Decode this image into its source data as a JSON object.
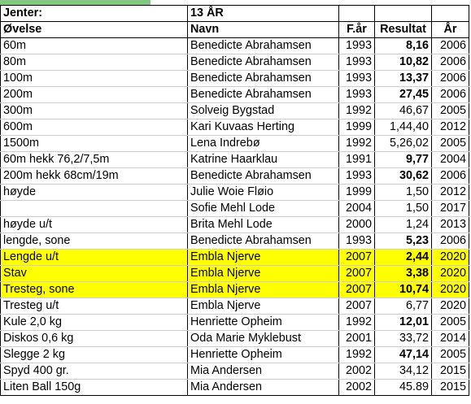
{
  "header": {
    "group_label": "Jenter:",
    "class_label": "13 ÅR"
  },
  "columns": [
    "Øvelse",
    "Navn",
    "F.år",
    "Resultat",
    "År"
  ],
  "highlight_color": "#ffff00",
  "rows": [
    {
      "event": "60m",
      "name": "Benedicte Abrahamsen",
      "born": "1993",
      "result": "8,16",
      "year": "2006",
      "bold": true,
      "highlight": false
    },
    {
      "event": "80m",
      "name": "Benedicte Abrahamsen",
      "born": "1993",
      "result": "10,82",
      "year": "2006",
      "bold": true,
      "highlight": false
    },
    {
      "event": "100m",
      "name": "Benedicte Abrahamsen",
      "born": "1993",
      "result": "13,37",
      "year": "2006",
      "bold": true,
      "highlight": false
    },
    {
      "event": "200m",
      "name": "Benedicte Abrahamsen",
      "born": "1993",
      "result": "27,45",
      "year": "2006",
      "bold": true,
      "highlight": false
    },
    {
      "event": "300m",
      "name": "Solveig Bygstad",
      "born": "1992",
      "result": "46,67",
      "year": "2005",
      "bold": false,
      "highlight": false
    },
    {
      "event": "600m",
      "name": "Kari Kuvaas Herting",
      "born": "1999",
      "result": "1,44,40",
      "year": "2012",
      "bold": false,
      "highlight": false
    },
    {
      "event": "1500m",
      "name": "Lena Indrebø",
      "born": "1992",
      "result": "5,26,02",
      "year": "2005",
      "bold": false,
      "highlight": false
    },
    {
      "event": "60m hekk 76,2/7,5m",
      "name": "Katrine Haarklau",
      "born": "1991",
      "result": "9,77",
      "year": "2004",
      "bold": true,
      "highlight": false
    },
    {
      "event": "200m hekk 68cm/19m",
      "name": "Benedicte Abrahamsen",
      "born": "1993",
      "result": "30,62",
      "year": "2006",
      "bold": true,
      "highlight": false
    },
    {
      "event": "høyde",
      "name": "Julie Woie Fløio",
      "born": "1999",
      "result": "1,50",
      "year": "2012",
      "bold": false,
      "highlight": false
    },
    {
      "event": "",
      "name": "Sofie Mehl Lode",
      "born": "2004",
      "result": "1,50",
      "year": "2017",
      "bold": false,
      "highlight": false
    },
    {
      "event": "høyde u/t",
      "name": "Brita Mehl Lode",
      "born": "2000",
      "result": "1,24",
      "year": "2013",
      "bold": false,
      "highlight": false
    },
    {
      "event": "lengde, sone",
      "name": "Benedicte Abrahamsen",
      "born": "1993",
      "result": "5,23",
      "year": "2006",
      "bold": true,
      "highlight": false
    },
    {
      "event": "Lengde u/t",
      "name": "Embla Njerve",
      "born": "2007",
      "result": "2,44",
      "year": "2020",
      "bold": true,
      "highlight": true
    },
    {
      "event": "Stav",
      "name": "Embla Njerve",
      "born": "2007",
      "result": "3,38",
      "year": "2020",
      "bold": true,
      "highlight": true
    },
    {
      "event": "Tresteg, sone",
      "name": "Embla Njerve",
      "born": "2007",
      "result": "10,74",
      "year": "2020",
      "bold": true,
      "highlight": true
    },
    {
      "event": "Tresteg u/t",
      "name": "Embla Njerve",
      "born": "2007",
      "result": "6,77",
      "year": "2020",
      "bold": false,
      "highlight": false
    },
    {
      "event": "Kule 2,0 kg",
      "name": "Henriette Opheim",
      "born": "1992",
      "result": "12,01",
      "year": "2005",
      "bold": true,
      "highlight": false
    },
    {
      "event": "Diskos 0,6 kg",
      "name": "Oda Marie Myklebust",
      "born": "2001",
      "result": "33,72",
      "year": "2014",
      "bold": false,
      "highlight": false
    },
    {
      "event": "Slegge 2 kg",
      "name": "Henriette Opheim",
      "born": "1992",
      "result": "47,14",
      "year": "2005",
      "bold": true,
      "highlight": false
    },
    {
      "event": "Spyd 400 gr.",
      "name": "Mia Andersen",
      "born": "2002",
      "result": "34,12",
      "year": "2015",
      "bold": false,
      "highlight": false
    },
    {
      "event": "Liten Ball 150g",
      "name": "Mia Andersen",
      "born": "2002",
      "result": "45.89",
      "year": "2015",
      "bold": false,
      "highlight": false
    }
  ]
}
